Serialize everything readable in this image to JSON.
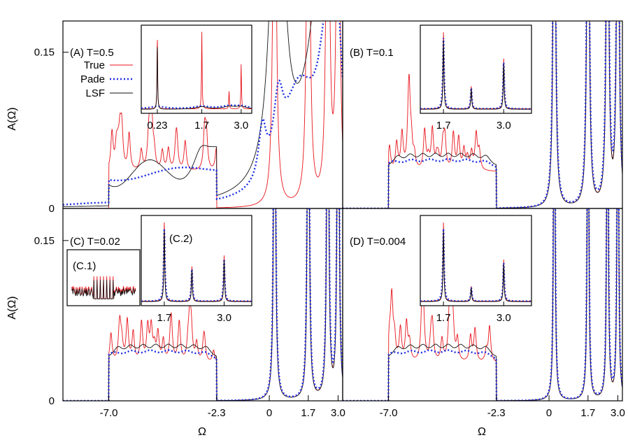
{
  "figure": {
    "ylabel": "A(Ω)",
    "xlabel": "Ω",
    "legend": [
      {
        "name": "True",
        "color": "#e8141b",
        "dash": "solid"
      },
      {
        "name": "Pade",
        "color": "#1c2ee6",
        "dash": "dotted"
      },
      {
        "name": "LSF",
        "color": "#111111",
        "dash": "solid"
      }
    ],
    "inset_labels": {
      "c1": "(C.1)",
      "c2": "(C.2)"
    }
  },
  "chart_data": [
    {
      "id": "A",
      "type": "line",
      "title": "(A) T=0.5",
      "xlim": [
        -9.0,
        3.2
      ],
      "ylim": [
        0,
        0.18
      ],
      "xticks": [],
      "yticks": [
        {
          "v": 0,
          "label": "0"
        },
        {
          "v": 0.15,
          "label": "0.15"
        }
      ],
      "inset": {
        "xticks": [
          {
            "v": 0.23,
            "label": "0.23"
          },
          {
            "v": 1.7,
            "label": "1.7"
          },
          {
            "v": 3.0,
            "label": "3.0"
          }
        ],
        "xlim": [
          -0.3,
          3.35
        ],
        "peaks": [
          0.23,
          1.7,
          2.6,
          3.0
        ],
        "true_h": [
          0.9,
          0.95,
          0.22,
          0.55
        ]
      }
    },
    {
      "id": "B",
      "type": "line",
      "title": "(B) T=0.1",
      "xlim": [
        -9.0,
        3.2
      ],
      "ylim": [
        0,
        0.18
      ],
      "xticks": [],
      "yticks": [],
      "inset": {
        "xticks": [
          {
            "v": 1.7,
            "label": "1.7"
          },
          {
            "v": 3.0,
            "label": "3.0"
          }
        ],
        "xlim": [
          1.2,
          3.6
        ],
        "peaks": [
          1.7,
          2.3,
          3.0
        ],
        "true_h": [
          0.95,
          0.28,
          0.62
        ]
      }
    },
    {
      "id": "C",
      "type": "line",
      "title": "(C) T=0.02",
      "xlim": [
        -9.0,
        3.2
      ],
      "ylim": [
        0,
        0.18
      ],
      "xticks": [
        {
          "v": -7.0,
          "label": "-7.0"
        },
        {
          "v": -2.3,
          "label": "-2.3"
        },
        {
          "v": 0,
          "label": "0"
        },
        {
          "v": 1.7,
          "label": "1.7"
        },
        {
          "v": 3.0,
          "label": "3.0"
        }
      ],
      "yticks": [
        {
          "v": 0,
          "label": "0"
        },
        {
          "v": 0.15,
          "label": "0.15"
        }
      ],
      "inset": {
        "xticks": [
          {
            "v": 1.7,
            "label": "1.7"
          },
          {
            "v": 3.0,
            "label": "3.0"
          }
        ],
        "xlim": [
          1.2,
          3.6
        ],
        "peaks": [
          1.7,
          2.3,
          3.0
        ],
        "true_h": [
          0.95,
          0.42,
          0.55
        ]
      }
    },
    {
      "id": "D",
      "type": "line",
      "title": "(D) T=0.004",
      "xlim": [
        -9.0,
        3.2
      ],
      "ylim": [
        0,
        0.18
      ],
      "xticks": [
        {
          "v": -7.0,
          "label": "-7.0"
        },
        {
          "v": -2.3,
          "label": "-2.3"
        },
        {
          "v": 0,
          "label": "0"
        },
        {
          "v": 1.7,
          "label": "1.7"
        },
        {
          "v": 3.0,
          "label": "3.0"
        }
      ],
      "yticks": [],
      "inset": {
        "xticks": [
          {
            "v": 1.7,
            "label": "1.7"
          },
          {
            "v": 3.0,
            "label": "3.0"
          }
        ],
        "xlim": [
          1.2,
          3.6
        ],
        "peaks": [
          1.7,
          2.3,
          3.0
        ],
        "true_h": [
          0.95,
          0.18,
          0.5
        ]
      }
    }
  ]
}
